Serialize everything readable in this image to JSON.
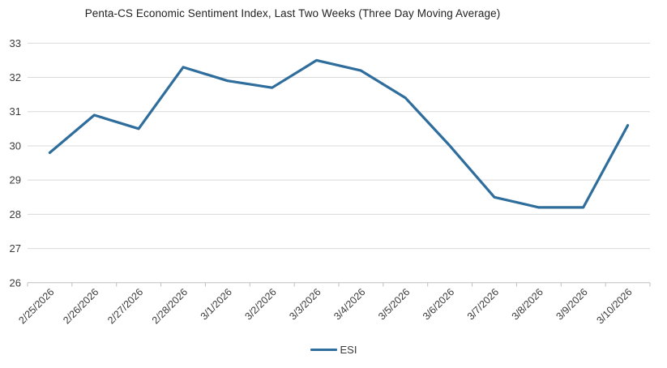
{
  "title": "Penta-CS Economic Sentiment Index, Last Two Weeks (Three Day Moving Average)",
  "legend": {
    "label": "ESI"
  },
  "chart_data": {
    "type": "line",
    "title": "Penta-CS Economic Sentiment Index, Last Two Weeks (Three Day Moving Average)",
    "categories": [
      "2/25/2026",
      "2/26/2026",
      "2/27/2026",
      "2/28/2026",
      "3/1/2026",
      "3/2/2026",
      "3/3/2026",
      "3/4/2026",
      "3/5/2026",
      "3/6/2026",
      "3/7/2026",
      "3/8/2026",
      "3/9/2026",
      "3/10/2026"
    ],
    "series": [
      {
        "name": "ESI",
        "values": [
          29.8,
          30.9,
          30.5,
          32.3,
          31.9,
          31.7,
          32.5,
          32.2,
          31.4,
          30.0,
          28.5,
          28.2,
          28.2,
          30.6
        ]
      }
    ],
    "xlabel": "",
    "ylabel": "",
    "ylim": [
      26,
      33
    ],
    "ytick_interval": 1,
    "yticks": [
      26,
      27,
      28,
      29,
      30,
      31,
      32,
      33
    ],
    "grid": "horizontal",
    "legend_position": "bottom",
    "x_label_rotation_deg": -45,
    "colors": {
      "line": "#2E6D9C",
      "gridline": "#D9D9D9",
      "axis": "#BFBFBF",
      "tick": "#BFBFBF",
      "axis_label": "#3a3a3a",
      "title": "#222222"
    }
  }
}
